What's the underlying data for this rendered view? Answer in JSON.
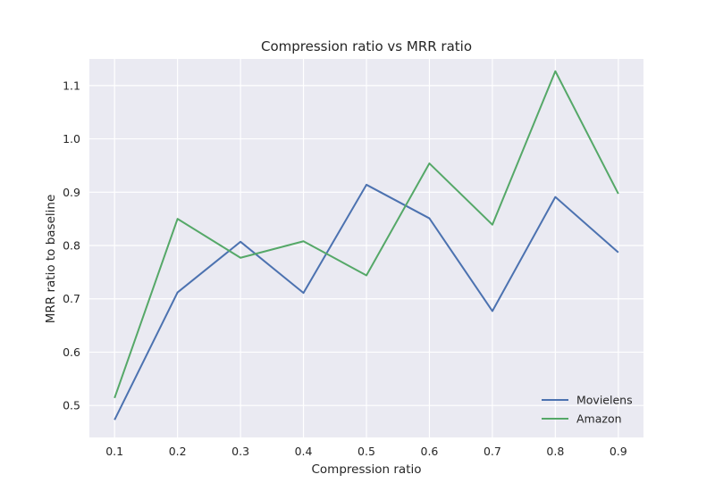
{
  "chart_data": {
    "type": "line",
    "title": "Compression ratio vs MRR ratio",
    "xlabel": "Compression ratio",
    "ylabel": "MRR ratio to baseline",
    "x": [
      0.1,
      0.2,
      0.3,
      0.4,
      0.5,
      0.6,
      0.7,
      0.8,
      0.9
    ],
    "x_ticks": [
      "0.1",
      "0.2",
      "0.3",
      "0.4",
      "0.5",
      "0.6",
      "0.7",
      "0.8",
      "0.9"
    ],
    "y_ticks": [
      "0.5",
      "0.6",
      "0.7",
      "0.8",
      "0.9",
      "1.0",
      "1.1"
    ],
    "xlim": [
      0.06,
      0.94
    ],
    "ylim": [
      0.44,
      1.15
    ],
    "grid": true,
    "legend": "lower-right",
    "background_color": "#eaeaf2",
    "series": [
      {
        "name": "Movielens",
        "color": "#4c72b0",
        "values": [
          0.473,
          0.712,
          0.807,
          0.711,
          0.914,
          0.851,
          0.677,
          0.891,
          0.787
        ]
      },
      {
        "name": "Amazon",
        "color": "#55a868",
        "values": [
          0.514,
          0.85,
          0.777,
          0.808,
          0.744,
          0.954,
          0.839,
          1.127,
          0.897
        ]
      }
    ]
  }
}
